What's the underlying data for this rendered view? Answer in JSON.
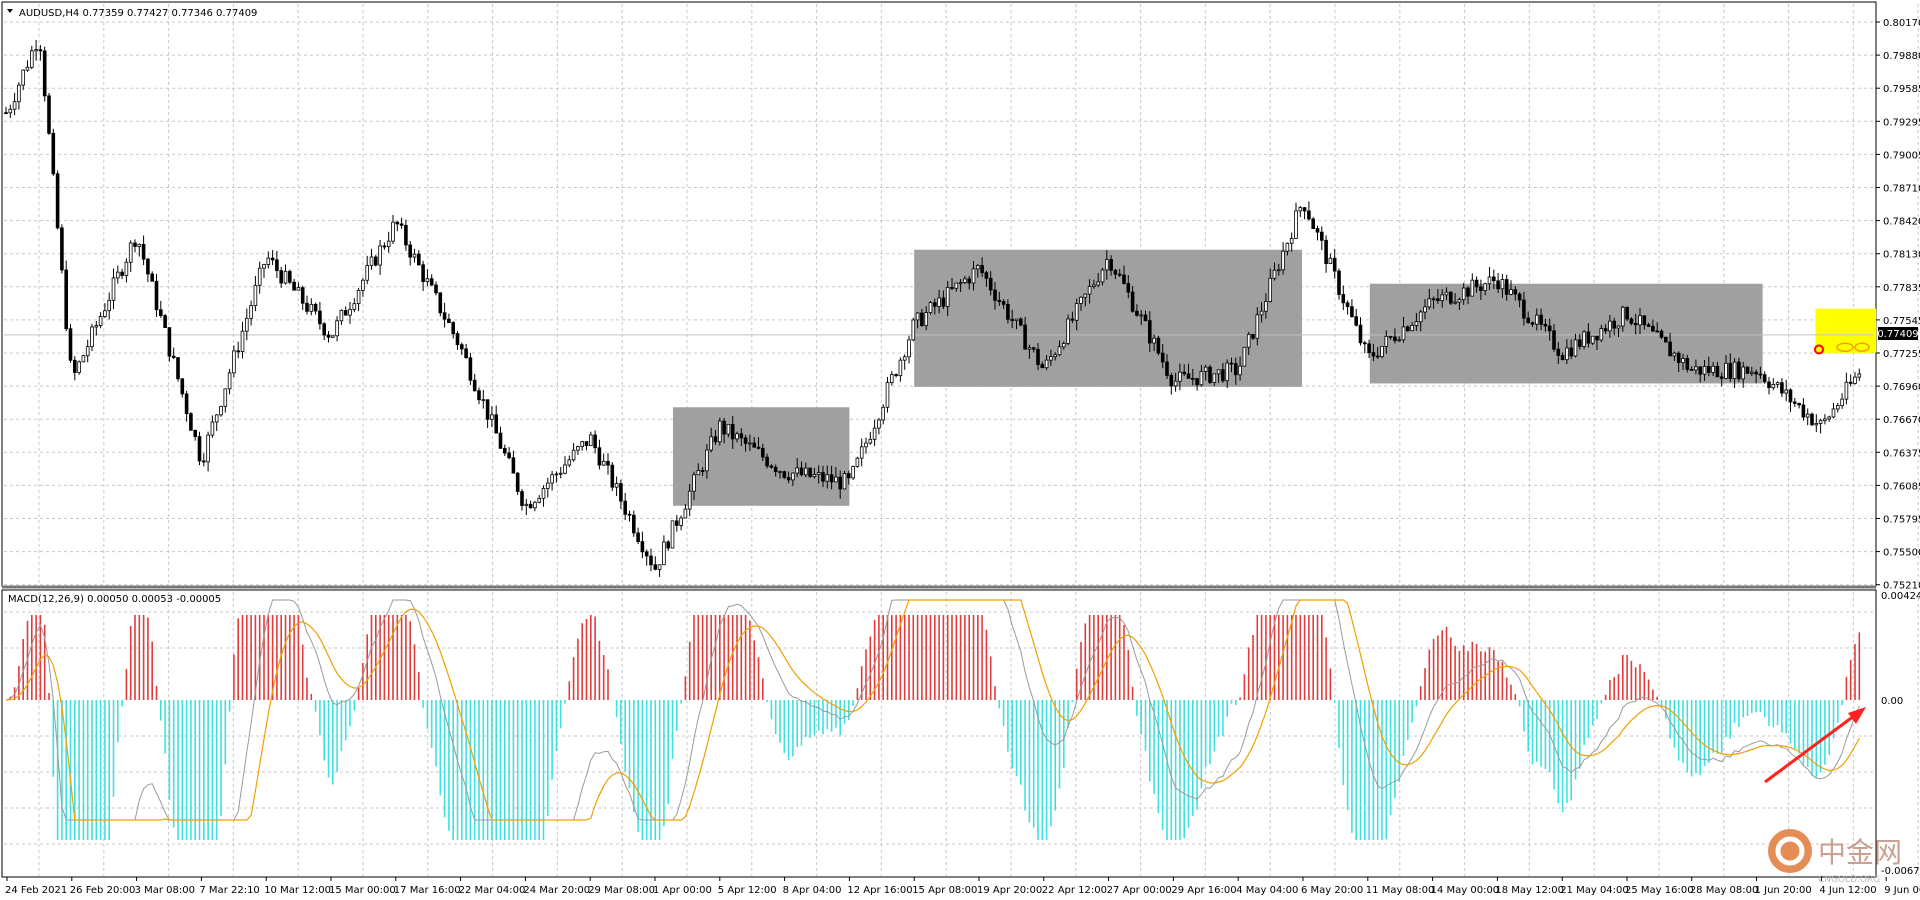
{
  "window": {
    "symbol_info": "AUDUSD,H4  0.77359 0.77427 0.77346 0.77409",
    "current_price": "0.77409"
  },
  "price_axis": {
    "labels": [
      "0.80170",
      "0.79880",
      "0.79585",
      "0.79295",
      "0.79005",
      "0.78710",
      "0.78420",
      "0.78130",
      "0.77835",
      "0.77545",
      "0.77255",
      "0.76960",
      "0.76670",
      "0.76375",
      "0.76085",
      "0.75795",
      "0.75500",
      "0.75210"
    ]
  },
  "macd_panel": {
    "label": "MACD(12,26,9) 0.00050 0.00053 -0.00005",
    "axis_top": "0.00424",
    "axis_zero": "0.00",
    "axis_bottom": "-0.00676"
  },
  "time_axis": {
    "labels": [
      "24 Feb 2021",
      "26 Feb 20:00",
      "3 Mar 08:00",
      "7 Mar 22:10",
      "10 Mar 12:00",
      "15 Mar 00:00",
      "17 Mar 16:00",
      "22 Mar 04:00",
      "24 Mar 20:00",
      "29 Mar 08:00",
      "1 Apr 00:00",
      "5 Apr 12:00",
      "8 Apr 04:00",
      "12 Apr 16:00",
      "15 Apr 08:00",
      "19 Apr 20:00",
      "22 Apr 12:00",
      "27 Apr 00:00",
      "29 Apr 16:00",
      "4 May 04:00",
      "6 May 20:00",
      "11 May 08:00",
      "14 May 00:00",
      "18 May 12:00",
      "21 May 04:00",
      "25 May 16:00",
      "28 May 08:00",
      "1 Jun 20:00",
      "4 Jun 12:00",
      "9 Jun 00:00"
    ]
  },
  "watermark": {
    "brand": "中金网",
    "domain": "CNGOLD.ORG"
  },
  "colors": {
    "candle": "#000000",
    "grid": "#c8c8c8",
    "range_box": "#a0a0a0",
    "highlight_box": "#ffff00",
    "histogram_positive": "#e03c3c",
    "histogram_negative": "#40e0e0",
    "macd_line": "#9a9a9a",
    "signal_line": "#f0a000",
    "current_price_line": "#c0c0c0",
    "arrow": "#ff2020"
  },
  "chart_data": {
    "type": "candlestick",
    "title": "AUDUSD,H4",
    "y_range": [
      0.7521,
      0.8017
    ],
    "key_points": [
      {
        "x": "24 Feb 2021",
        "price": 0.7937
      },
      {
        "x": "25 Feb",
        "price": 0.8007
      },
      {
        "x": "26 Feb 20:00",
        "price": 0.77
      },
      {
        "x": "3 Mar 08:00",
        "price": 0.783
      },
      {
        "x": "7 Mar 22:10",
        "price": 0.763
      },
      {
        "x": "10 Mar 12:00",
        "price": 0.781
      },
      {
        "x": "15 Mar 00:00",
        "price": 0.774
      },
      {
        "x": "17 Mar 16:00",
        "price": 0.784
      },
      {
        "x": "22 Mar 04:00",
        "price": 0.773
      },
      {
        "x": "24 Mar 20:00",
        "price": 0.759
      },
      {
        "x": "29 Mar 08:00",
        "price": 0.765
      },
      {
        "x": "1 Apr 00:00",
        "price": 0.7535
      },
      {
        "x": "5 Apr 12:00",
        "price": 0.766
      },
      {
        "x": "8 Apr 04:00",
        "price": 0.762
      },
      {
        "x": "12 Apr 16:00",
        "price": 0.761
      },
      {
        "x": "15 Apr 08:00",
        "price": 0.775
      },
      {
        "x": "19 Apr 20:00",
        "price": 0.78
      },
      {
        "x": "22 Apr 12:00",
        "price": 0.771
      },
      {
        "x": "27 Apr 00:00",
        "price": 0.781
      },
      {
        "x": "29 Apr 16:00",
        "price": 0.77
      },
      {
        "x": "4 May 04:00",
        "price": 0.771
      },
      {
        "x": "6 May 20:00",
        "price": 0.786
      },
      {
        "x": "11 May 08:00",
        "price": 0.772
      },
      {
        "x": "14 May 00:00",
        "price": 0.777
      },
      {
        "x": "18 May 12:00",
        "price": 0.779
      },
      {
        "x": "21 May 04:00",
        "price": 0.7725
      },
      {
        "x": "25 May 16:00",
        "price": 0.776
      },
      {
        "x": "28 May 08:00",
        "price": 0.771
      },
      {
        "x": "1 Jun 20:00",
        "price": 0.771
      },
      {
        "x": "4 Jun 12:00",
        "price": 0.766
      },
      {
        "x": "9 Jun 00:00",
        "price": 0.7741
      }
    ],
    "range_boxes": [
      {
        "from": "1 Apr 00:00",
        "to": "12 Apr 16:00",
        "low": 0.759,
        "high": 0.7677
      },
      {
        "from": "15 Apr 08:00",
        "to": "6 May 20:00",
        "low": 0.7695,
        "high": 0.7816
      },
      {
        "from": "11 May 08:00",
        "to": "1 Jun 20:00",
        "low": 0.7698,
        "high": 0.7786
      }
    ],
    "highlight_box": {
      "from": "4 Jun 12:00",
      "to": "9 Jun 00:00",
      "low": 0.7725,
      "high": 0.7764
    }
  }
}
